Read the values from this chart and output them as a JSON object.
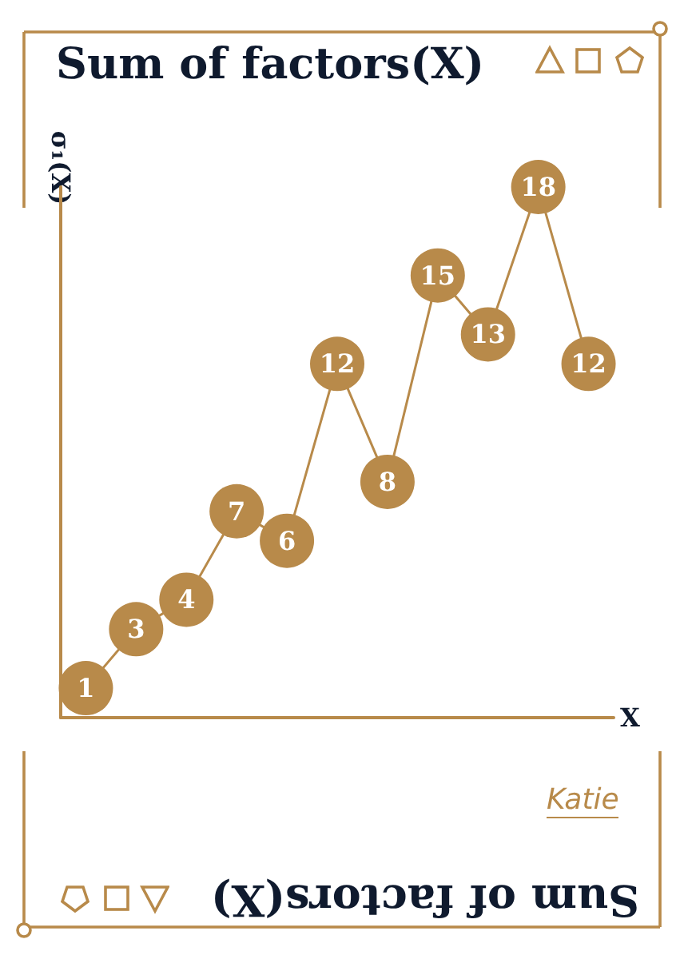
{
  "chart_data": {
    "type": "line",
    "title": "Sum of factors(X)",
    "xlabel": "X",
    "ylabel": "σ₁(X)",
    "categories": [
      null,
      null,
      null,
      null,
      null,
      null,
      null,
      null,
      null,
      null,
      null
    ],
    "series": [
      {
        "color": "#b88a4a",
        "values": [
          1,
          3,
          4,
          7,
          6,
          12,
          8,
          15,
          13,
          18,
          12
        ]
      }
    ],
    "data_labels": true,
    "marker": "circle",
    "line_style": "solid",
    "grid": false,
    "tick_labels": false,
    "annotations": [
      "Sum of factors(X)",
      "Katie"
    ]
  }
}
